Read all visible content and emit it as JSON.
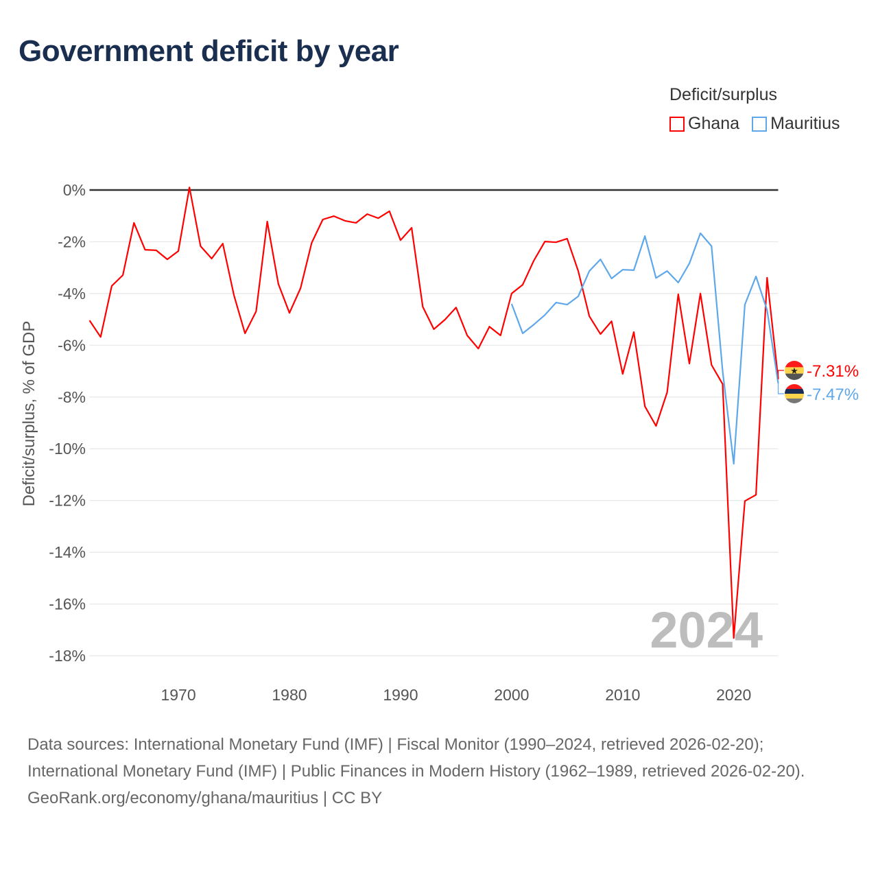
{
  "title": "Government deficit by year",
  "legend": {
    "title": "Deficit/surplus",
    "items": [
      {
        "name": "Ghana",
        "color": "#ff0000"
      },
      {
        "name": "Mauritius",
        "color": "#5ea7ea"
      }
    ]
  },
  "watermark_year": "2024",
  "end_labels": {
    "ghana": "-7.31%",
    "mauritius": "-7.47%"
  },
  "footer": {
    "sources": "Data sources: International Monetary Fund (IMF) | Fiscal Monitor (1990–2024, retrieved 2026-02-20); International Monetary Fund (IMF) | Public Finances in Modern History (1962–1989, retrieved 2026-02-20).",
    "credit": "GeoRank.org/economy/ghana/mauritius | CC BY"
  },
  "chart_data": {
    "type": "line",
    "title": "Government deficit by year",
    "xlabel": "",
    "ylabel": "Deficit/surplus, % of GDP",
    "xlim": [
      1962,
      2024
    ],
    "ylim": [
      -18,
      0
    ],
    "xticks": [
      1970,
      1980,
      1990,
      2000,
      2010,
      2020
    ],
    "yticks": [
      0,
      -2,
      -4,
      -6,
      -8,
      -10,
      -12,
      -14,
      -16,
      -18
    ],
    "ytick_labels": [
      "0%",
      "-2%",
      "-4%",
      "-6%",
      "-8%",
      "-10%",
      "-12%",
      "-14%",
      "-16%",
      "-18%"
    ],
    "grid": true,
    "legend_position": "top-right",
    "series": [
      {
        "name": "Ghana",
        "color": "#ff0000",
        "start_year": 1962,
        "values": [
          -5.04,
          -5.68,
          -3.71,
          -3.29,
          -1.27,
          -2.31,
          -2.33,
          -2.68,
          -2.36,
          0.1,
          -2.17,
          -2.65,
          -2.07,
          -4.06,
          -5.54,
          -4.69,
          -1.22,
          -3.63,
          -4.75,
          -3.79,
          -2.04,
          -1.14,
          -1.01,
          -1.19,
          -1.27,
          -0.93,
          -1.09,
          -0.82,
          -1.94,
          -1.46,
          -4.51,
          -5.38,
          -5.01,
          -4.54,
          -5.62,
          -6.13,
          -5.28,
          -5.62,
          -4.0,
          -3.66,
          -2.73,
          -1.99,
          -2.02,
          -1.88,
          -3.13,
          -4.88,
          -5.57,
          -5.07,
          -7.11,
          -5.49,
          -8.36,
          -9.12,
          -7.82,
          -4.03,
          -6.71,
          -4.0,
          -6.76,
          -7.5,
          -17.32,
          -12.02,
          -11.78,
          -3.39,
          -7.31
        ]
      },
      {
        "name": "Mauritius",
        "color": "#5ea7ea",
        "start_year": 2000,
        "values": [
          -4.4,
          -5.54,
          -5.2,
          -4.83,
          -4.35,
          -4.43,
          -4.11,
          -3.13,
          -2.68,
          -3.42,
          -3.08,
          -3.1,
          -1.78,
          -3.4,
          -3.13,
          -3.58,
          -2.84,
          -1.67,
          -2.17,
          -7.0,
          -10.58,
          -4.43,
          -3.34,
          -4.64,
          -7.47
        ]
      }
    ]
  }
}
